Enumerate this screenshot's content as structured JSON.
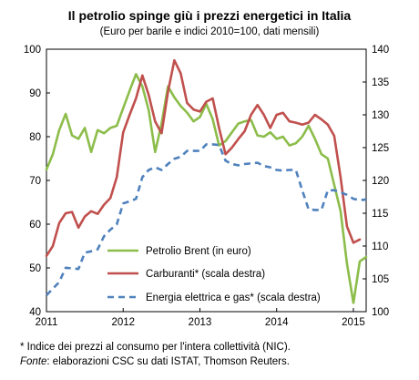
{
  "chart_data": {
    "type": "line",
    "title": "Il petrolio spinge giù i prezzi energetici in Italia",
    "subtitle": "(Euro per barile e indici 2010=100, dati mensili)",
    "x_ticks": [
      "2011",
      "2012",
      "2013",
      "2014",
      "2015"
    ],
    "xlim": [
      "2011-01",
      "2015-03"
    ],
    "left_axis": {
      "ylim": [
        40,
        100
      ],
      "ticks": [
        "40",
        "50",
        "60",
        "70",
        "80",
        "90",
        "100"
      ]
    },
    "right_axis": {
      "ylim": [
        100,
        140
      ],
      "ticks": [
        "100",
        "105",
        "110",
        "115",
        "120",
        "125",
        "130",
        "135",
        "140"
      ]
    },
    "legend": {
      "placement": "bottom-right"
    },
    "series": [
      {
        "name": "Petrolio Brent (in euro)",
        "axis": "left",
        "color": "#8cbd4a",
        "dash": "solid",
        "x": [
          "2011-01",
          "2011-02",
          "2011-03",
          "2011-04",
          "2011-05",
          "2011-06",
          "2011-07",
          "2011-08",
          "2011-09",
          "2011-10",
          "2011-11",
          "2011-12",
          "2012-01",
          "2012-02",
          "2012-03",
          "2012-04",
          "2012-05",
          "2012-06",
          "2012-07",
          "2012-08",
          "2012-09",
          "2012-10",
          "2012-11",
          "2012-12",
          "2013-01",
          "2013-02",
          "2013-03",
          "2013-04",
          "2013-05",
          "2013-06",
          "2013-07",
          "2013-08",
          "2013-09",
          "2013-10",
          "2013-11",
          "2013-12",
          "2014-01",
          "2014-02",
          "2014-03",
          "2014-04",
          "2014-05",
          "2014-06",
          "2014-07",
          "2014-08",
          "2014-09",
          "2014-10",
          "2014-11",
          "2014-12",
          "2015-01",
          "2015-02",
          "2015-03"
        ],
        "values": [
          72.5,
          76.0,
          81.5,
          85.2,
          80.3,
          79.5,
          82.0,
          76.5,
          81.5,
          80.8,
          82.0,
          82.5,
          86.5,
          90.5,
          94.3,
          91.5,
          86.0,
          76.5,
          83.0,
          91.5,
          89.0,
          87.0,
          85.5,
          83.5,
          84.5,
          87.5,
          84.0,
          78.0,
          79.0,
          81.0,
          83.0,
          83.5,
          83.8,
          80.3,
          80.0,
          81.0,
          79.5,
          80.0,
          78.0,
          78.5,
          80.0,
          82.5,
          79.5,
          76.0,
          75.0,
          69.0,
          63.0,
          51.0,
          42.0,
          51.5,
          52.5
        ]
      },
      {
        "name": "Carburanti* (scala destra)",
        "axis": "right",
        "color": "#c0504d",
        "dash": "solid",
        "x": [
          "2011-01",
          "2011-02",
          "2011-03",
          "2011-04",
          "2011-05",
          "2011-06",
          "2011-07",
          "2011-08",
          "2011-09",
          "2011-10",
          "2011-11",
          "2011-12",
          "2012-01",
          "2012-02",
          "2012-03",
          "2012-04",
          "2012-05",
          "2012-06",
          "2012-07",
          "2012-08",
          "2012-09",
          "2012-10",
          "2012-11",
          "2012-12",
          "2013-01",
          "2013-02",
          "2013-03",
          "2013-04",
          "2013-05",
          "2013-06",
          "2013-07",
          "2013-08",
          "2013-09",
          "2013-10",
          "2013-11",
          "2013-12",
          "2014-01",
          "2014-02",
          "2014-03",
          "2014-04",
          "2014-05",
          "2014-06",
          "2014-07",
          "2014-08",
          "2014-09",
          "2014-10",
          "2014-11",
          "2014-12",
          "2015-01",
          "2015-02"
        ],
        "values": [
          108.5,
          110.0,
          113.5,
          115.0,
          115.2,
          112.8,
          114.5,
          115.3,
          114.9,
          116.3,
          117.3,
          120.5,
          127.3,
          130.0,
          132.5,
          136.0,
          133.0,
          129.0,
          127.2,
          133.5,
          138.3,
          136.3,
          131.8,
          130.8,
          130.5,
          132.0,
          132.5,
          128.0,
          124.0,
          125.0,
          126.3,
          127.5,
          130.0,
          131.5,
          130.0,
          128.0,
          130.0,
          130.3,
          129.0,
          128.8,
          128.5,
          128.8,
          130.0,
          129.3,
          128.5,
          126.8,
          120.5,
          113.0,
          110.5,
          111.0
        ]
      },
      {
        "name": "Energia elettrica e gas* (scala destra)",
        "axis": "right",
        "color": "#4f81bd",
        "dash": "dashed",
        "x": [
          "2011-01",
          "2011-02",
          "2011-03",
          "2011-04",
          "2011-05",
          "2011-06",
          "2011-07",
          "2011-08",
          "2011-09",
          "2011-10",
          "2011-11",
          "2011-12",
          "2012-01",
          "2012-02",
          "2012-03",
          "2012-04",
          "2012-05",
          "2012-06",
          "2012-07",
          "2012-08",
          "2012-09",
          "2012-10",
          "2012-11",
          "2012-12",
          "2013-01",
          "2013-02",
          "2013-03",
          "2013-04",
          "2013-05",
          "2013-06",
          "2013-07",
          "2013-08",
          "2013-09",
          "2013-10",
          "2013-11",
          "2013-12",
          "2014-01",
          "2014-02",
          "2014-03",
          "2014-04",
          "2014-05",
          "2014-06",
          "2014-07",
          "2014-08",
          "2014-09",
          "2014-10",
          "2014-11",
          "2014-12",
          "2015-01",
          "2015-02",
          "2015-03"
        ],
        "values": [
          102.5,
          103.5,
          104.5,
          106.7,
          106.6,
          106.5,
          109.0,
          109.2,
          109.5,
          111.5,
          112.5,
          113.3,
          116.5,
          116.8,
          117.2,
          120.5,
          121.6,
          122.0,
          121.6,
          122.5,
          123.3,
          123.6,
          124.5,
          124.5,
          124.5,
          125.5,
          125.5,
          125.4,
          123.0,
          122.5,
          122.3,
          122.5,
          122.6,
          122.7,
          122.2,
          122.0,
          121.6,
          121.5,
          121.6,
          121.6,
          118.5,
          115.6,
          115.5,
          115.5,
          118.5,
          118.5,
          118.2,
          117.8,
          117.2,
          117.0,
          117.1
        ]
      }
    ]
  },
  "notes": {
    "footnote": "* Indice dei prezzi al consumo per l'intera collettività (NIC).",
    "source_label": "Fonte",
    "source_text": ": elaborazioni CSC su dati ISTAT, Thomson Reuters."
  }
}
